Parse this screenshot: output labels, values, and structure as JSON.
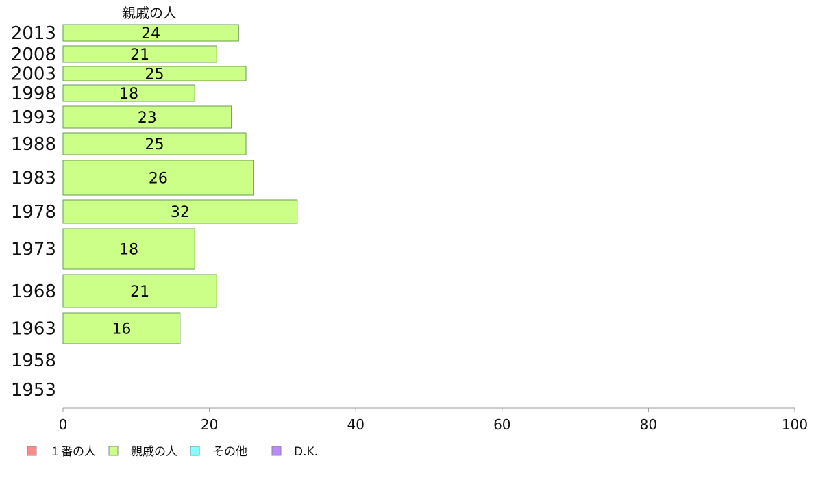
{
  "chart_data": {
    "type": "bar",
    "orientation": "horizontal",
    "title": "",
    "series_header": "親戚の人",
    "categories": [
      "2013",
      "2008",
      "2003",
      "1998",
      "1993",
      "1988",
      "1983",
      "1978",
      "1973",
      "1968",
      "1963",
      "1958",
      "1953"
    ],
    "series": [
      {
        "name": "親戚の人",
        "values": [
          24,
          21,
          25,
          18,
          23,
          25,
          26,
          32,
          18,
          21,
          16,
          null,
          null
        ],
        "color": "#ccff88"
      }
    ],
    "xlim": [
      0,
      100
    ],
    "xticks": [
      0,
      20,
      40,
      60,
      80,
      100
    ],
    "legend": {
      "placement": "bottom-left",
      "items": [
        {
          "label": "１番の人",
          "color": "#ff8a8a"
        },
        {
          "label": "親戚の人",
          "color": "#ccff88"
        },
        {
          "label": "その他",
          "color": "#88ffff"
        },
        {
          "label": "D.K.",
          "color": "#bb88ff"
        }
      ]
    }
  }
}
